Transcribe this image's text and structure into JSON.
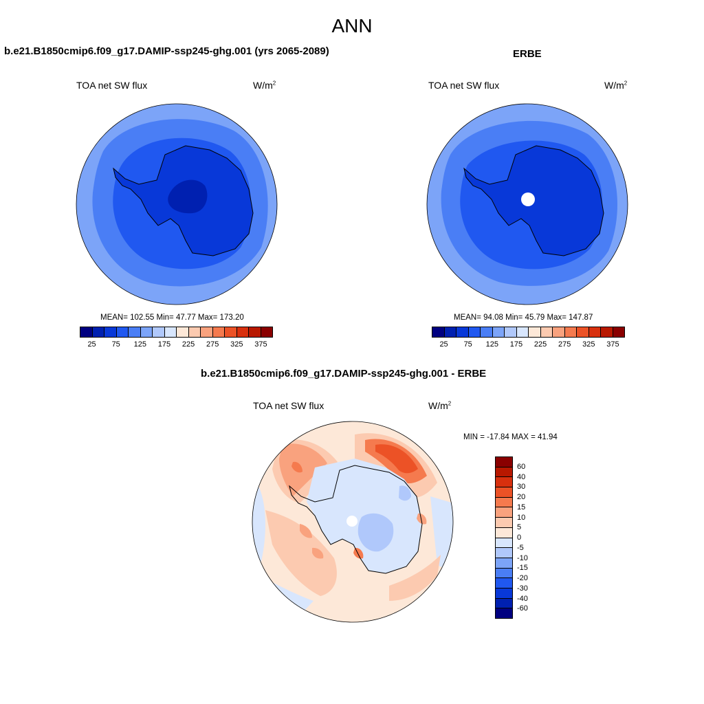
{
  "title": "ANN",
  "panels": {
    "model": {
      "title": "b.e21.B1850cmip6.f09_g17.DAMIP-ssp245-ghg.001 (yrs 2065-2089)",
      "variable": "TOA net SW flux",
      "units": "W/m",
      "units_exp": "2",
      "stats": "MEAN= 102.55  Min=  47.77  Max= 173.20"
    },
    "obs": {
      "title": "ERBE",
      "variable": "TOA net SW flux",
      "units": "W/m",
      "units_exp": "2",
      "stats": "MEAN=  94.08  Min=  45.79  Max= 147.87"
    },
    "diff": {
      "title": "b.e21.B1850cmip6.f09_g17.DAMIP-ssp245-ghg.001 - ERBE",
      "variable": "TOA net SW flux",
      "units": "W/m",
      "units_exp": "2",
      "stats": "MIN = -17.84 MAX =  41.94"
    }
  },
  "colorbar_main": {
    "colors": [
      "#000080",
      "#0020b0",
      "#0838d8",
      "#2058f0",
      "#4a7ef5",
      "#7ca4f8",
      "#b0c8fb",
      "#d8e6fd",
      "#fde8d8",
      "#fccab0",
      "#f9a27e",
      "#f57a4e",
      "#ec5226",
      "#d8300e",
      "#b81800",
      "#8a0000"
    ],
    "tick_labels": [
      "25",
      "75",
      "125",
      "175",
      "225",
      "275",
      "325",
      "375"
    ]
  },
  "colorbar_diff": {
    "colors": [
      "#8a0000",
      "#b81800",
      "#d8300e",
      "#ec5226",
      "#f57a4e",
      "#f9a27e",
      "#fccab0",
      "#fde8d8",
      "#d8e6fd",
      "#b0c8fb",
      "#7ca4f8",
      "#4a7ef5",
      "#2058f0",
      "#0838d8",
      "#0020b0",
      "#000080"
    ],
    "tick_labels": [
      "60",
      "40",
      "30",
      "20",
      "15",
      "10",
      "5",
      "0",
      "-5",
      "-10",
      "-15",
      "-20",
      "-30",
      "-40",
      "-60"
    ]
  },
  "map_colors": {
    "outer": "#7ca4f8",
    "middle": "#4a7ef5",
    "inner": "#2058f0",
    "continent": "#0838d8",
    "core": "#0020b0",
    "diff_base": "#fde8d8",
    "diff_neg": "#d8e6fd",
    "diff_neg2": "#b0c8fb",
    "diff_pos": "#fccab0",
    "diff_pos2": "#f9a27e",
    "diff_pos3": "#f57a4e",
    "diff_pos4": "#ec5226"
  }
}
